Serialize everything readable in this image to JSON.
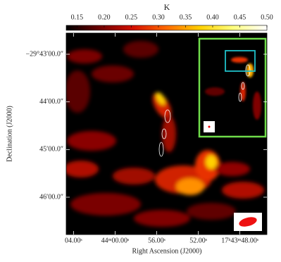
{
  "chart_data": {
    "type": "image",
    "colorbar": {
      "label": "K",
      "clim": [
        0.13,
        0.5
      ],
      "colormap": [
        "#000000",
        "#6e0000",
        "#d41000",
        "#ff6a00",
        "#ffd000",
        "#ffff80",
        "#ffffff"
      ],
      "ticks": [
        0.15,
        {
          "value": 0.2,
          "label": "0.20"
        },
        0.25,
        {
          "value": 0.3,
          "label": "0.30"
        },
        0.35,
        {
          "value": 0.4,
          "label": "0.40"
        },
        0.45,
        {
          "value": 0.5,
          "label": "0.50"
        }
      ]
    },
    "xlabel": "Right Ascension (J2000)",
    "ylabel": "Declination (J2000)",
    "xlim": [
      4.7,
      -14.6
    ],
    "ylim": [
      -227,
      26.6
    ],
    "xticks": [
      {
        "value": 4,
        "label": "04.00ˢ"
      },
      {
        "value": 0,
        "label": "44ᵐ00.00ˢ"
      },
      {
        "value": -4,
        "label": "56.00ˢ"
      },
      {
        "value": -8,
        "label": "52.00ˢ"
      },
      {
        "value": -12,
        "label": "17ʰ43ᵐ48.00ˢ"
      }
    ],
    "yticks": [
      {
        "value": 0,
        "label": "−29°43′00.0″"
      },
      {
        "value": -60,
        "label": "44′00.0″"
      },
      {
        "value": -120,
        "label": "45′00.0″"
      },
      {
        "value": -180,
        "label": "46′00.0″"
      }
    ]
  }
}
